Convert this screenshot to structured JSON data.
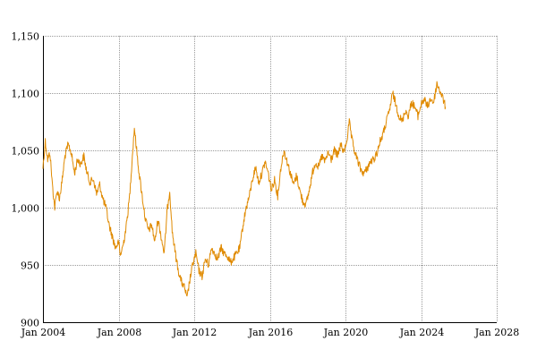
{
  "chart_data": {
    "type": "line",
    "title": "",
    "xlabel": "",
    "ylabel": "",
    "x_range": [
      "2004-01-01",
      "2028-01-01"
    ],
    "ylim": [
      900,
      1150
    ],
    "grid": true,
    "legend": "none",
    "x_ticks": [
      {
        "value": "2004-01-01",
        "label": "Jan 2004"
      },
      {
        "value": "2008-01-01",
        "label": "Jan 2008"
      },
      {
        "value": "2012-01-01",
        "label": "Jan 2012"
      },
      {
        "value": "2016-01-01",
        "label": "Jan 2016"
      },
      {
        "value": "2020-01-01",
        "label": "Jan 2020"
      },
      {
        "value": "2024-01-01",
        "label": "Jan 2024"
      },
      {
        "value": "2028-01-01",
        "label": "Jan 2028"
      }
    ],
    "y_ticks": [
      {
        "value": 900,
        "label": "900"
      },
      {
        "value": 950,
        "label": "950"
      },
      {
        "value": 1000,
        "label": "1,000"
      },
      {
        "value": 1050,
        "label": "1,050"
      },
      {
        "value": 1100,
        "label": "1,100"
      },
      {
        "value": 1150,
        "label": "1,150"
      }
    ],
    "series": [
      {
        "color": "#e08a00",
        "points": [
          [
            "2004-01-01",
            1035
          ],
          [
            "2004-02-15",
            1058
          ],
          [
            "2004-04-01",
            1042
          ],
          [
            "2004-05-15",
            1048
          ],
          [
            "2004-07-01",
            1020
          ],
          [
            "2004-08-15",
            1000
          ],
          [
            "2004-10-01",
            1015
          ],
          [
            "2004-11-15",
            1008
          ],
          [
            "2005-01-01",
            1022
          ],
          [
            "2005-03-01",
            1045
          ],
          [
            "2005-05-01",
            1055
          ],
          [
            "2005-07-01",
            1048
          ],
          [
            "2005-09-01",
            1030
          ],
          [
            "2005-11-01",
            1042
          ],
          [
            "2006-01-01",
            1038
          ],
          [
            "2006-03-01",
            1045
          ],
          [
            "2006-05-01",
            1030
          ],
          [
            "2006-07-01",
            1022
          ],
          [
            "2006-09-01",
            1025
          ],
          [
            "2006-11-01",
            1012
          ],
          [
            "2007-01-01",
            1020
          ],
          [
            "2007-03-01",
            1008
          ],
          [
            "2007-05-01",
            1000
          ],
          [
            "2007-07-01",
            985
          ],
          [
            "2007-09-01",
            975
          ],
          [
            "2007-11-01",
            965
          ],
          [
            "2008-01-01",
            970
          ],
          [
            "2008-02-01",
            958
          ],
          [
            "2008-04-01",
            968
          ],
          [
            "2008-06-01",
            985
          ],
          [
            "2008-08-01",
            1010
          ],
          [
            "2008-09-15",
            1040
          ],
          [
            "2008-11-01",
            1070
          ],
          [
            "2008-12-15",
            1050
          ],
          [
            "2009-02-01",
            1030
          ],
          [
            "2009-04-01",
            1010
          ],
          [
            "2009-06-01",
            990
          ],
          [
            "2009-08-01",
            980
          ],
          [
            "2009-10-01",
            985
          ],
          [
            "2009-12-01",
            970
          ],
          [
            "2010-02-01",
            990
          ],
          [
            "2010-04-01",
            975
          ],
          [
            "2010-06-01",
            960
          ],
          [
            "2010-08-01",
            1000
          ],
          [
            "2010-09-15",
            1015
          ],
          [
            "2010-11-01",
            980
          ],
          [
            "2011-01-01",
            960
          ],
          [
            "2011-03-01",
            945
          ],
          [
            "2011-05-01",
            935
          ],
          [
            "2011-07-01",
            930
          ],
          [
            "2011-08-15",
            920
          ],
          [
            "2011-10-01",
            935
          ],
          [
            "2011-12-01",
            950
          ],
          [
            "2012-02-01",
            960
          ],
          [
            "2012-04-01",
            945
          ],
          [
            "2012-06-01",
            940
          ],
          [
            "2012-08-01",
            955
          ],
          [
            "2012-10-01",
            950
          ],
          [
            "2012-12-01",
            965
          ],
          [
            "2013-02-01",
            960
          ],
          [
            "2013-04-01",
            955
          ],
          [
            "2013-06-01",
            965
          ],
          [
            "2013-08-01",
            960
          ],
          [
            "2013-10-01",
            958
          ],
          [
            "2013-12-01",
            952
          ],
          [
            "2014-02-01",
            956
          ],
          [
            "2014-04-01",
            960
          ],
          [
            "2014-06-01",
            965
          ],
          [
            "2014-08-01",
            985
          ],
          [
            "2014-10-01",
            1000
          ],
          [
            "2014-12-01",
            1010
          ],
          [
            "2015-02-01",
            1025
          ],
          [
            "2015-04-01",
            1035
          ],
          [
            "2015-06-01",
            1022
          ],
          [
            "2015-08-01",
            1030
          ],
          [
            "2015-10-01",
            1040
          ],
          [
            "2015-12-01",
            1030
          ],
          [
            "2016-02-01",
            1015
          ],
          [
            "2016-04-01",
            1025
          ],
          [
            "2016-06-01",
            1010
          ],
          [
            "2016-08-01",
            1035
          ],
          [
            "2016-10-01",
            1050
          ],
          [
            "2016-12-01",
            1040
          ],
          [
            "2017-02-01",
            1030
          ],
          [
            "2017-04-01",
            1020
          ],
          [
            "2017-06-01",
            1028
          ],
          [
            "2017-08-01",
            1015
          ],
          [
            "2017-10-01",
            1005
          ],
          [
            "2017-12-01",
            1003
          ],
          [
            "2018-02-01",
            1015
          ],
          [
            "2018-04-01",
            1030
          ],
          [
            "2018-06-01",
            1040
          ],
          [
            "2018-08-01",
            1035
          ],
          [
            "2018-10-01",
            1045
          ],
          [
            "2018-12-01",
            1040
          ],
          [
            "2019-02-01",
            1048
          ],
          [
            "2019-04-01",
            1042
          ],
          [
            "2019-06-01",
            1050
          ],
          [
            "2019-08-01",
            1045
          ],
          [
            "2019-10-01",
            1055
          ],
          [
            "2019-12-01",
            1048
          ],
          [
            "2020-02-01",
            1060
          ],
          [
            "2020-03-15",
            1075
          ],
          [
            "2020-05-01",
            1060
          ],
          [
            "2020-07-01",
            1048
          ],
          [
            "2020-09-01",
            1040
          ],
          [
            "2020-11-01",
            1032
          ],
          [
            "2021-01-01",
            1030
          ],
          [
            "2021-03-01",
            1035
          ],
          [
            "2021-05-01",
            1040
          ],
          [
            "2021-07-01",
            1042
          ],
          [
            "2021-09-01",
            1048
          ],
          [
            "2021-11-01",
            1058
          ],
          [
            "2022-01-01",
            1065
          ],
          [
            "2022-03-01",
            1075
          ],
          [
            "2022-05-01",
            1085
          ],
          [
            "2022-07-01",
            1100
          ],
          [
            "2022-09-01",
            1090
          ],
          [
            "2022-11-01",
            1080
          ],
          [
            "2023-01-01",
            1075
          ],
          [
            "2023-03-01",
            1085
          ],
          [
            "2023-05-01",
            1080
          ],
          [
            "2023-07-01",
            1092
          ],
          [
            "2023-09-01",
            1088
          ],
          [
            "2023-11-01",
            1080
          ],
          [
            "2024-01-01",
            1090
          ],
          [
            "2024-03-01",
            1095
          ],
          [
            "2024-05-01",
            1088
          ],
          [
            "2024-07-01",
            1095
          ],
          [
            "2024-09-01",
            1092
          ],
          [
            "2024-11-01",
            1108
          ],
          [
            "2025-01-01",
            1102
          ],
          [
            "2025-03-01",
            1095
          ],
          [
            "2025-04-15",
            1088
          ]
        ]
      }
    ]
  }
}
